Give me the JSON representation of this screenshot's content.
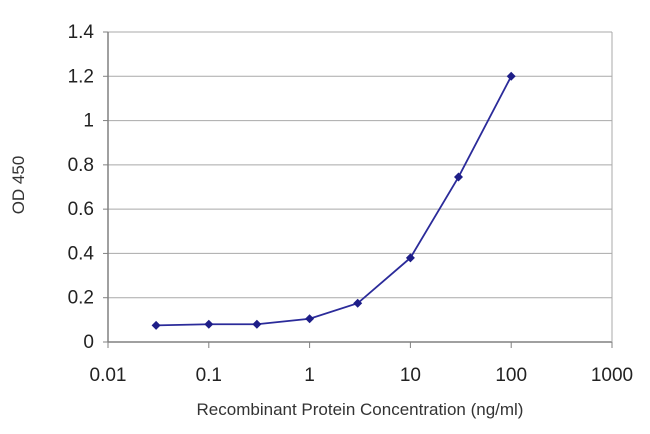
{
  "chart_data": {
    "type": "scatter",
    "xscale": "log",
    "xlim": [
      0.01,
      1000
    ],
    "ylim": [
      0,
      1.4
    ],
    "xticks": [
      "0.01",
      "0.1",
      "1",
      "10",
      "100",
      "1000"
    ],
    "yticks": [
      "0",
      "0.2",
      "0.4",
      "0.6",
      "0.8",
      "1",
      "1.2",
      "1.4"
    ],
    "xlabel": "Recombinant Protein Concentration (ng/ml)",
    "ylabel": "OD 450",
    "grid": "horizontal",
    "legend": "none",
    "series": [
      {
        "x": [
          0.03,
          0.1,
          0.3,
          1,
          3,
          10,
          30,
          100
        ],
        "y": [
          0.075,
          0.08,
          0.08,
          0.105,
          0.175,
          0.38,
          0.745,
          1.2
        ]
      }
    ],
    "colors": {
      "line": "#2b2b9a",
      "marker": "#1e1e88",
      "grid": "#a9a9a9",
      "axis": "#808080"
    }
  }
}
